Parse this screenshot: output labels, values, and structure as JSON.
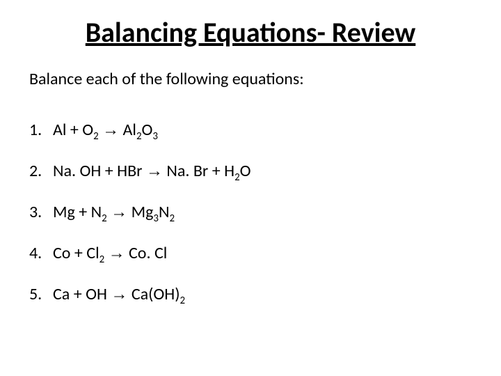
{
  "title": "Balancing Equations- Review",
  "subtitle": "Balance each of the following equations:",
  "title_fontsize": 40,
  "subtitle_fontsize": 24,
  "item_fontsize": 24,
  "text_color": "#000000",
  "background_color": "#ffffff",
  "arrow_glyph": "→",
  "equations": [
    {
      "n": "1.",
      "lhs_a": "Al",
      "plus1": "  +  ",
      "lhs_b": "O",
      "lhs_b_sub": "2",
      "arrow_pad": "  ",
      "rhs_a": "Al",
      "rhs_a_sub": "2",
      "rhs_b": "O",
      "rhs_b_sub": "3"
    },
    {
      "n": "2.",
      "lhs_a": "Na. OH",
      "plus1": "  +  ",
      "lhs_b": "HBr",
      "arrow_pad": "  ",
      "rhs_a": "Na. Br",
      "plus2": "  +  ",
      "rhs_b": "H",
      "rhs_b_sub": "2",
      "rhs_c": "O"
    },
    {
      "n": "3.",
      "lhs_a": "Mg",
      "plus1": "  +  ",
      "lhs_b": "N",
      "lhs_b_sub": "2",
      "arrow_pad": "  ",
      "rhs_a": "Mg",
      "rhs_a_sub": "3",
      "rhs_b": "N",
      "rhs_b_sub": "2"
    },
    {
      "n": "4.",
      "lhs_a": "Co",
      "plus1": " +  ",
      "lhs_b": "Cl",
      "lhs_b_sub": "2",
      "arrow_pad": "  ",
      "rhs_a": "Co. Cl"
    },
    {
      "n": "5.",
      "lhs_a": "Ca",
      "plus1": " +  ",
      "lhs_b": "OH",
      "arrow_pad": "  ",
      "rhs_a": "Ca(OH)",
      "rhs_a_sub": "2"
    }
  ]
}
